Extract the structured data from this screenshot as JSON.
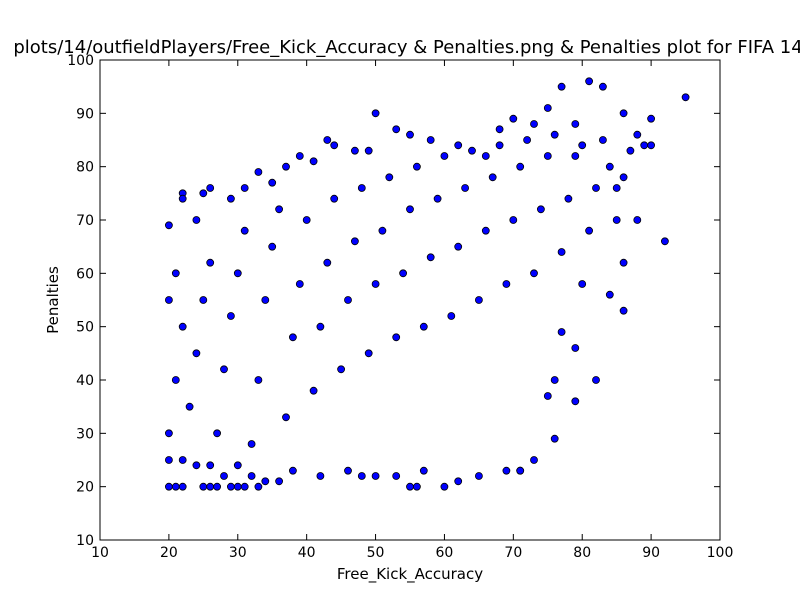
{
  "chart_data": {
    "type": "scatter",
    "title": "plots/14/outfieldPlayers/Free_Kick_Accuracy & Penalties.png & Penalties plot for FIFA 14",
    "xlabel": "Free_Kick_Accuracy",
    "ylabel": "Penalties",
    "xlim": [
      10,
      100
    ],
    "ylim": [
      10,
      100
    ],
    "xticks": [
      "10",
      "20",
      "30",
      "40",
      "50",
      "60",
      "70",
      "80",
      "90",
      "100"
    ],
    "yticks": [
      "10",
      "20",
      "30",
      "40",
      "50",
      "60",
      "70",
      "80",
      "90",
      "100"
    ],
    "grid": false,
    "marker_color": "#0000ff",
    "marker_edge_color": "#000000",
    "series": [
      {
        "points": [
          [
            20,
            20
          ],
          [
            21,
            20
          ],
          [
            22,
            20
          ],
          [
            25,
            20
          ],
          [
            26,
            20
          ],
          [
            27,
            20
          ],
          [
            29,
            20
          ],
          [
            30,
            20
          ],
          [
            31,
            20
          ],
          [
            33,
            20
          ],
          [
            55,
            20
          ],
          [
            56,
            20
          ],
          [
            60,
            20
          ],
          [
            20,
            25
          ],
          [
            22,
            25
          ],
          [
            24,
            24
          ],
          [
            26,
            24
          ],
          [
            28,
            22
          ],
          [
            30,
            24
          ],
          [
            32,
            22
          ],
          [
            34,
            21
          ],
          [
            36,
            21
          ],
          [
            38,
            23
          ],
          [
            42,
            22
          ],
          [
            46,
            23
          ],
          [
            48,
            22
          ],
          [
            50,
            22
          ],
          [
            53,
            22
          ],
          [
            57,
            23
          ],
          [
            62,
            21
          ],
          [
            65,
            22
          ],
          [
            69,
            23
          ],
          [
            71,
            23
          ],
          [
            20,
            69
          ],
          [
            22,
            75
          ],
          [
            22,
            74
          ],
          [
            24,
            70
          ],
          [
            25,
            75
          ],
          [
            26,
            76
          ],
          [
            29,
            74
          ],
          [
            31,
            76
          ],
          [
            33,
            79
          ],
          [
            35,
            77
          ],
          [
            37,
            80
          ],
          [
            39,
            82
          ],
          [
            41,
            81
          ],
          [
            43,
            85
          ],
          [
            44,
            84
          ],
          [
            47,
            83
          ],
          [
            49,
            83
          ],
          [
            50,
            90
          ],
          [
            53,
            87
          ],
          [
            55,
            86
          ],
          [
            58,
            85
          ],
          [
            62,
            84
          ],
          [
            66,
            82
          ],
          [
            68,
            87
          ],
          [
            70,
            89
          ],
          [
            73,
            88
          ],
          [
            75,
            91
          ],
          [
            77,
            95
          ],
          [
            79,
            88
          ],
          [
            81,
            96
          ],
          [
            83,
            95
          ],
          [
            86,
            90
          ],
          [
            90,
            89
          ],
          [
            95,
            93
          ],
          [
            86,
            53
          ],
          [
            92,
            66
          ],
          [
            82,
            40
          ],
          [
            76,
            29
          ],
          [
            79,
            36
          ],
          [
            71,
            23
          ],
          [
            73,
            25
          ],
          [
            88,
            70
          ],
          [
            85,
            76
          ],
          [
            86,
            62
          ],
          [
            84,
            56
          ],
          [
            80,
            58
          ],
          [
            77,
            49
          ],
          [
            79,
            46
          ],
          [
            76,
            40
          ],
          [
            75,
            37
          ],
          [
            20,
            30
          ],
          [
            21,
            40
          ],
          [
            22,
            50
          ],
          [
            20,
            55
          ],
          [
            21,
            60
          ],
          [
            23,
            35
          ],
          [
            24,
            45
          ],
          [
            25,
            55
          ],
          [
            26,
            62
          ],
          [
            27,
            30
          ],
          [
            28,
            42
          ],
          [
            29,
            52
          ],
          [
            30,
            60
          ],
          [
            31,
            68
          ],
          [
            32,
            28
          ],
          [
            33,
            40
          ],
          [
            34,
            55
          ],
          [
            35,
            65
          ],
          [
            36,
            72
          ],
          [
            37,
            33
          ],
          [
            38,
            48
          ],
          [
            39,
            58
          ],
          [
            40,
            70
          ],
          [
            41,
            38
          ],
          [
            42,
            50
          ],
          [
            43,
            62
          ],
          [
            44,
            74
          ],
          [
            45,
            42
          ],
          [
            46,
            55
          ],
          [
            47,
            66
          ],
          [
            48,
            76
          ],
          [
            49,
            45
          ],
          [
            50,
            58
          ],
          [
            51,
            68
          ],
          [
            52,
            78
          ],
          [
            53,
            48
          ],
          [
            54,
            60
          ],
          [
            55,
            72
          ],
          [
            56,
            80
          ],
          [
            57,
            50
          ],
          [
            58,
            63
          ],
          [
            59,
            74
          ],
          [
            60,
            82
          ],
          [
            61,
            52
          ],
          [
            62,
            65
          ],
          [
            63,
            76
          ],
          [
            64,
            83
          ],
          [
            65,
            55
          ],
          [
            66,
            68
          ],
          [
            67,
            78
          ],
          [
            68,
            84
          ],
          [
            69,
            58
          ],
          [
            70,
            70
          ],
          [
            71,
            80
          ],
          [
            72,
            85
          ],
          [
            73,
            60
          ],
          [
            74,
            72
          ],
          [
            75,
            82
          ],
          [
            76,
            86
          ],
          [
            77,
            64
          ],
          [
            78,
            74
          ],
          [
            79,
            82
          ],
          [
            80,
            84
          ],
          [
            81,
            68
          ],
          [
            82,
            76
          ],
          [
            83,
            85
          ],
          [
            84,
            80
          ],
          [
            85,
            70
          ],
          [
            86,
            78
          ],
          [
            87,
            83
          ],
          [
            88,
            86
          ],
          [
            89,
            84
          ],
          [
            90,
            84
          ]
        ]
      }
    ]
  }
}
